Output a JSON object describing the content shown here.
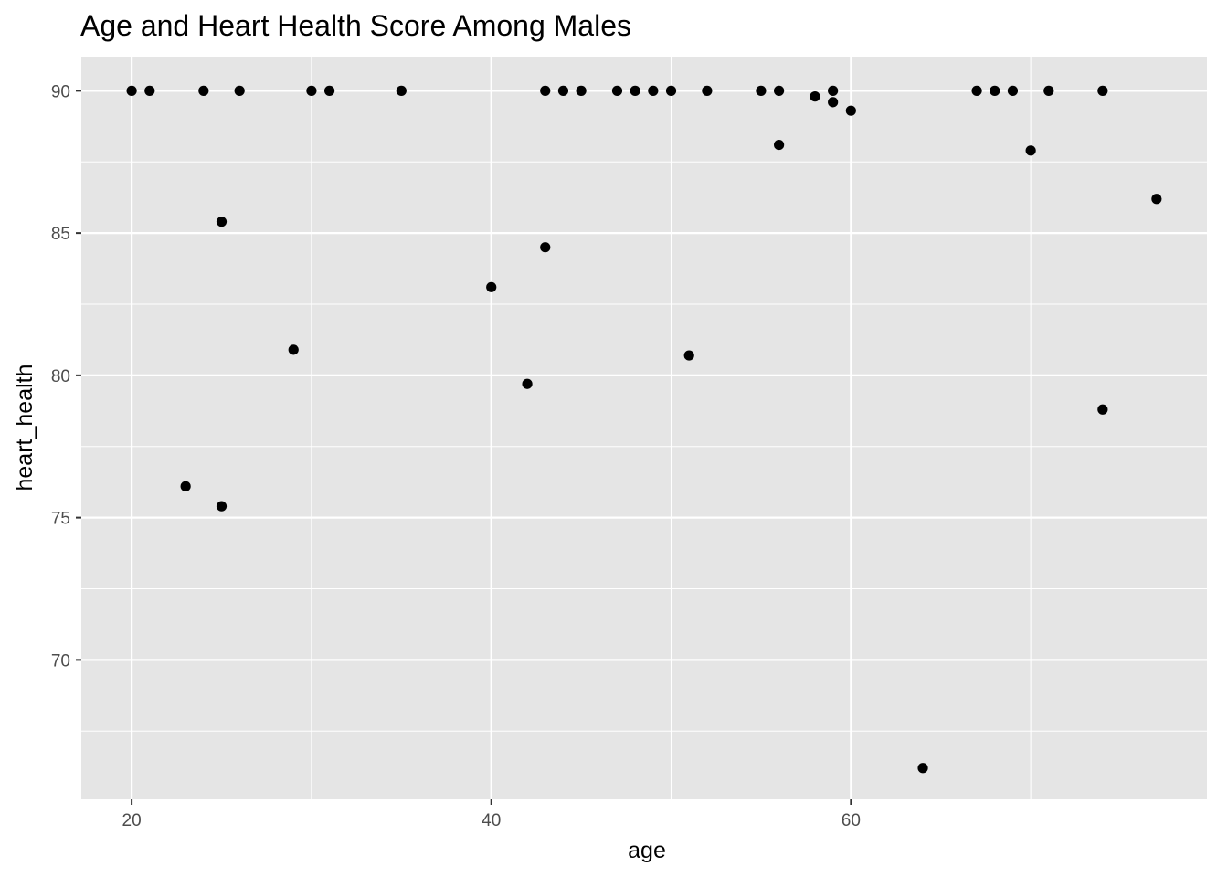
{
  "chart_data": {
    "type": "scatter",
    "title": "Age and Heart Health Score Among Males",
    "xlabel": "age",
    "ylabel": "heart_health",
    "xlim": [
      17.2,
      79.8
    ],
    "ylim": [
      65.1,
      91.2
    ],
    "x_ticks": [
      20,
      40,
      60
    ],
    "y_ticks": [
      70,
      75,
      80,
      85,
      90
    ],
    "grid": true,
    "legend": "none",
    "panel_color": "#e5e5e5",
    "grid_color": "#ffffff",
    "point_color": "#000000",
    "points": [
      {
        "x": 20,
        "y": 90
      },
      {
        "x": 21,
        "y": 90
      },
      {
        "x": 23,
        "y": 76.1
      },
      {
        "x": 24,
        "y": 90
      },
      {
        "x": 25,
        "y": 85.4
      },
      {
        "x": 25,
        "y": 75.4
      },
      {
        "x": 26,
        "y": 90
      },
      {
        "x": 29,
        "y": 80.9
      },
      {
        "x": 30,
        "y": 90
      },
      {
        "x": 31,
        "y": 90
      },
      {
        "x": 35,
        "y": 90
      },
      {
        "x": 40,
        "y": 83.1
      },
      {
        "x": 42,
        "y": 79.7
      },
      {
        "x": 43,
        "y": 90
      },
      {
        "x": 43,
        "y": 84.5
      },
      {
        "x": 44,
        "y": 90
      },
      {
        "x": 45,
        "y": 90
      },
      {
        "x": 47,
        "y": 90
      },
      {
        "x": 48,
        "y": 90
      },
      {
        "x": 49,
        "y": 90
      },
      {
        "x": 50,
        "y": 90
      },
      {
        "x": 51,
        "y": 80.7
      },
      {
        "x": 52,
        "y": 90
      },
      {
        "x": 55,
        "y": 90
      },
      {
        "x": 56,
        "y": 90
      },
      {
        "x": 56,
        "y": 88.1
      },
      {
        "x": 58,
        "y": 89.8
      },
      {
        "x": 59,
        "y": 90
      },
      {
        "x": 59,
        "y": 89.6
      },
      {
        "x": 60,
        "y": 89.3
      },
      {
        "x": 64,
        "y": 66.2
      },
      {
        "x": 67,
        "y": 90
      },
      {
        "x": 68,
        "y": 90
      },
      {
        "x": 69,
        "y": 90
      },
      {
        "x": 70,
        "y": 87.9
      },
      {
        "x": 71,
        "y": 90
      },
      {
        "x": 74,
        "y": 90
      },
      {
        "x": 74,
        "y": 78.8
      },
      {
        "x": 77,
        "y": 86.2
      }
    ]
  }
}
